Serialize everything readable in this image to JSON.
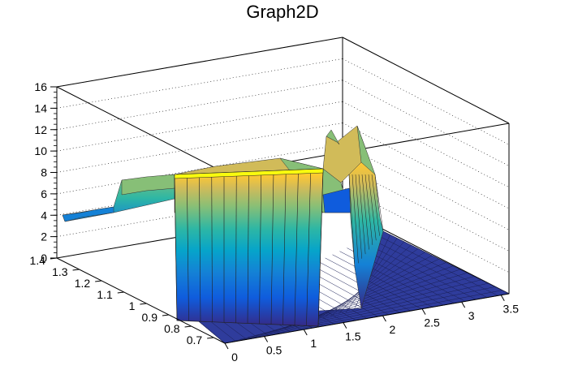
{
  "chart_data": {
    "type": "surface3d",
    "title": "Graph2D",
    "xlabel": "",
    "ylabel": "",
    "zlabel": "",
    "xlim": [
      0,
      3.6
    ],
    "ylim": [
      0.65,
      1.4
    ],
    "zlim": [
      0,
      16
    ],
    "grid": true,
    "colormap": [
      "#352a87",
      "#0f5cdd",
      "#1481d6",
      "#06a4ca",
      "#2eb7a4",
      "#87bf77",
      "#d1bb59",
      "#fec832",
      "#f9fb0e"
    ],
    "x_ticks": [
      "0",
      "0.5",
      "1",
      "1.5",
      "2",
      "2.5",
      "3",
      "3.5"
    ],
    "y_ticks": [
      "0.7",
      "0.8",
      "0.9",
      "1",
      "1.1",
      "1.2",
      "1.3",
      "1.4"
    ],
    "z_ticks": [
      "0",
      "2",
      "4",
      "6",
      "8",
      "10",
      "12",
      "14",
      "16"
    ],
    "profile": {
      "x": [
        0.0,
        0.5,
        1.0,
        1.4,
        1.5,
        1.7,
        1.8,
        1.95,
        2.2,
        2.6,
        3.0,
        3.6
      ],
      "z": [
        0.0,
        0.0,
        0.0,
        0.0,
        9.5,
        10.0,
        13.5,
        9.0,
        0.0,
        0.0,
        0.0,
        0.0
      ]
    },
    "wall": {
      "x_range": [
        0.0,
        1.4
      ],
      "y_at_front": 0.7,
      "z": [
        0.0,
        9.0,
        9.5
      ]
    },
    "back_ridge": {
      "y": 1.4,
      "x": [
        0.0,
        0.5,
        1.0,
        1.2,
        1.5
      ],
      "z": [
        4.0,
        4.5,
        6.5,
        7.5,
        8.0
      ]
    }
  }
}
